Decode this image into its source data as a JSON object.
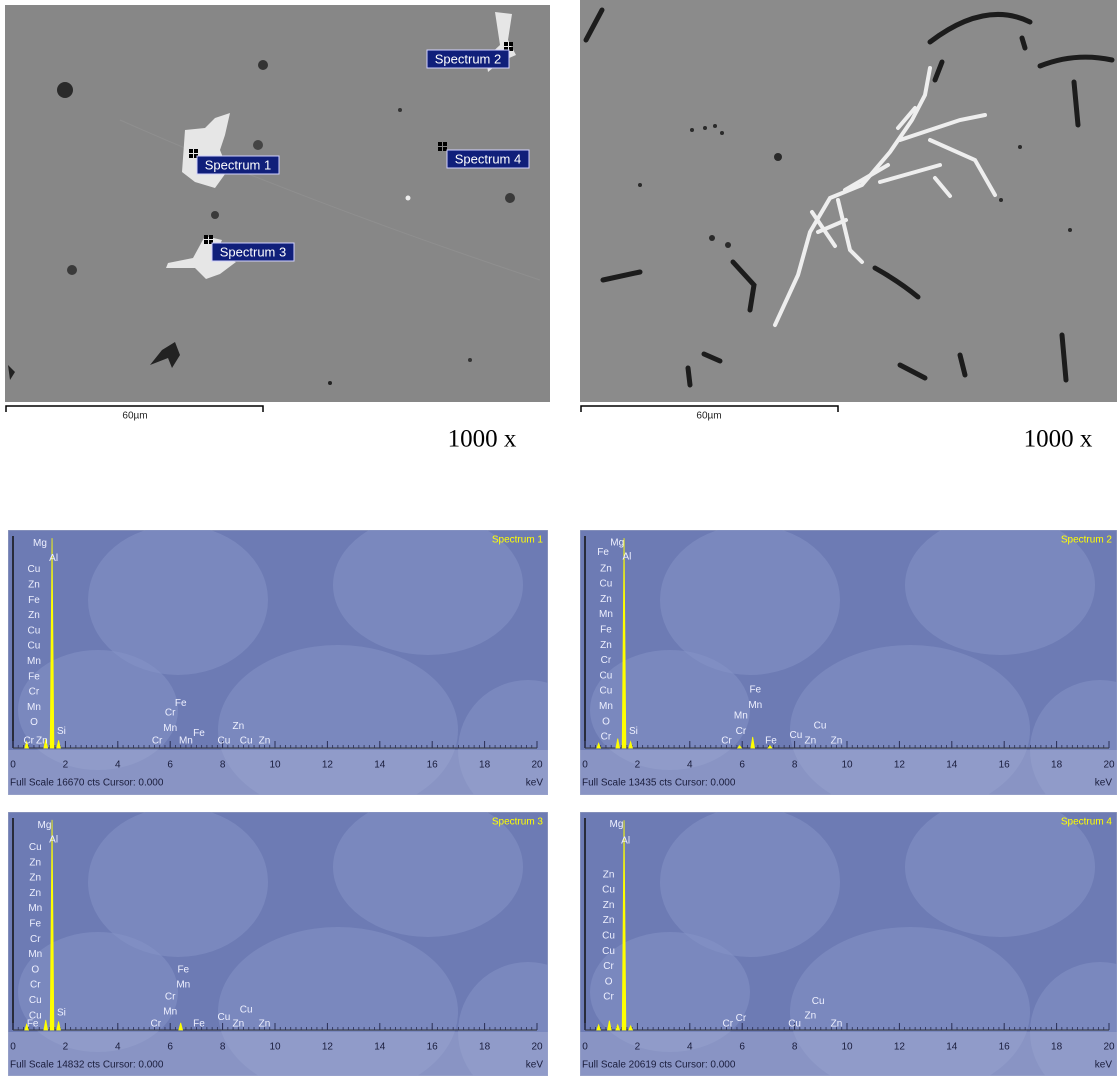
{
  "micrographs": [
    {
      "spectrum_labels": [
        "Spectrum 1",
        "Spectrum 2",
        "Spectrum 3",
        "Spectrum 4"
      ],
      "scale_bar": "60µm",
      "magnification": "1000 x"
    },
    {
      "scale_bar": "60µm",
      "magnification": "1000 x"
    }
  ],
  "chart_data": [
    {
      "type": "spectrum",
      "title": "Spectrum 1",
      "footer": "Full Scale 16670 cts Cursor: 0.000",
      "x_label": "keV",
      "color": "#ffff00",
      "xlim": [
        0,
        20
      ],
      "xticks": [
        0,
        2,
        4,
        6,
        8,
        10,
        12,
        14,
        16,
        18,
        20
      ],
      "ylim": [
        0,
        16670
      ],
      "x": [
        0.52,
        1.25,
        1.49,
        1.74
      ],
      "values": [
        500,
        700,
        16500,
        600
      ],
      "element_labels": [
        {
          "x": 1.03,
          "y": 16100,
          "labels": [
            "Mg"
          ]
        },
        {
          "x": 1.55,
          "y": 14900,
          "labels": [
            "Al"
          ]
        },
        {
          "x": 0.8,
          "y": 2000,
          "labels": [
            "Cu",
            "Zn",
            "Fe",
            "Zn",
            "Cu",
            "Cu",
            "Mn",
            "Fe",
            "Cr",
            "Mn",
            "O"
          ]
        },
        {
          "x": 0.6,
          "y": 550,
          "labels": [
            "Cr"
          ]
        },
        {
          "x": 1.1,
          "y": 550,
          "labels": [
            "Zn"
          ]
        },
        {
          "x": 1.85,
          "y": 1300,
          "labels": [
            "Si"
          ]
        },
        {
          "x": 6.4,
          "y": 3500,
          "labels": [
            "Fe"
          ]
        },
        {
          "x": 6.0,
          "y": 1560,
          "labels": [
            "Cr",
            "Mn"
          ]
        },
        {
          "x": 5.5,
          "y": 550,
          "labels": [
            "Cr"
          ]
        },
        {
          "x": 6.6,
          "y": 550,
          "labels": [
            "Mn"
          ]
        },
        {
          "x": 7.1,
          "y": 1170,
          "labels": [
            "Fe"
          ]
        },
        {
          "x": 8.6,
          "y": 1700,
          "labels": [
            "Zn"
          ]
        },
        {
          "x": 8.05,
          "y": 550,
          "labels": [
            "Cu"
          ]
        },
        {
          "x": 8.9,
          "y": 550,
          "labels": [
            "Cu"
          ]
        },
        {
          "x": 9.6,
          "y": 550,
          "labels": [
            "Zn"
          ]
        }
      ]
    },
    {
      "type": "spectrum",
      "title": "Spectrum 2",
      "footer": "Full Scale 13435 cts Cursor: 0.000",
      "x_label": "keV",
      "color": "#ffff00",
      "xlim": [
        0,
        20
      ],
      "xticks": [
        0,
        2,
        4,
        6,
        8,
        10,
        12,
        14,
        16,
        18,
        20
      ],
      "ylim": [
        0,
        13435
      ],
      "x": [
        0.52,
        1.25,
        1.49,
        1.74,
        5.9,
        6.4,
        7.06
      ],
      "values": [
        300,
        600,
        13300,
        400,
        150,
        700,
        150
      ],
      "element_labels": [
        {
          "x": 0.69,
          "y": 12400,
          "labels": [
            "Fe"
          ]
        },
        {
          "x": 1.23,
          "y": 13000,
          "labels": [
            "Mg"
          ]
        },
        {
          "x": 1.6,
          "y": 12100,
          "labels": [
            "Al"
          ]
        },
        {
          "x": 0.8,
          "y": 700,
          "labels": [
            "Zn",
            "Cu",
            "Zn",
            "Mn",
            "Fe",
            "Zn",
            "Cr",
            "Cu",
            "Cu",
            "Mn",
            "O",
            "Cr"
          ]
        },
        {
          "x": 1.85,
          "y": 1070,
          "labels": [
            "Si"
          ]
        },
        {
          "x": 6.5,
          "y": 2700,
          "labels": [
            "Fe",
            "Mn"
          ]
        },
        {
          "x": 5.95,
          "y": 1070,
          "labels": [
            "Mn",
            "Cr"
          ]
        },
        {
          "x": 5.4,
          "y": 450,
          "labels": [
            "Cr"
          ]
        },
        {
          "x": 7.1,
          "y": 450,
          "labels": [
            "Fe"
          ]
        },
        {
          "x": 8.97,
          "y": 1400,
          "labels": [
            "Cu"
          ]
        },
        {
          "x": 8.05,
          "y": 800,
          "labels": [
            "Cu"
          ]
        },
        {
          "x": 8.6,
          "y": 450,
          "labels": [
            "Zn"
          ]
        },
        {
          "x": 9.6,
          "y": 450,
          "labels": [
            "Zn"
          ]
        }
      ]
    },
    {
      "type": "spectrum",
      "title": "Spectrum 3",
      "footer": "Full Scale 14832 cts Cursor: 0.000",
      "x_label": "keV",
      "color": "#ffff00",
      "xlim": [
        0,
        20
      ],
      "xticks": [
        0,
        2,
        4,
        6,
        8,
        10,
        12,
        14,
        16,
        18,
        20
      ],
      "ylim": [
        0,
        14832
      ],
      "x": [
        0.52,
        1.25,
        1.49,
        1.74,
        6.4
      ],
      "values": [
        400,
        700,
        14700,
        600,
        500
      ],
      "element_labels": [
        {
          "x": 1.2,
          "y": 14300,
          "labels": [
            "Mg"
          ]
        },
        {
          "x": 1.55,
          "y": 13300,
          "labels": [
            "Al"
          ]
        },
        {
          "x": 0.85,
          "y": 1000,
          "labels": [
            "Cu",
            "Zn",
            "Zn",
            "Zn",
            "Mn",
            "Fe",
            "Cr",
            "Mn",
            "O",
            "Cr",
            "Cu",
            "Cu"
          ]
        },
        {
          "x": 0.75,
          "y": 420,
          "labels": [
            "Fe"
          ]
        },
        {
          "x": 1.85,
          "y": 1200,
          "labels": [
            "Si"
          ]
        },
        {
          "x": 6.5,
          "y": 3150,
          "labels": [
            "Fe",
            "Mn"
          ]
        },
        {
          "x": 6.0,
          "y": 1260,
          "labels": [
            "Cr",
            "Mn"
          ]
        },
        {
          "x": 5.45,
          "y": 420,
          "labels": [
            "Cr"
          ]
        },
        {
          "x": 7.1,
          "y": 420,
          "labels": [
            "Fe"
          ]
        },
        {
          "x": 8.9,
          "y": 1400,
          "labels": [
            "Cu"
          ]
        },
        {
          "x": 8.05,
          "y": 900,
          "labels": [
            "Cu"
          ]
        },
        {
          "x": 8.6,
          "y": 420,
          "labels": [
            "Zn"
          ]
        },
        {
          "x": 9.6,
          "y": 420,
          "labels": [
            "Zn"
          ]
        }
      ]
    },
    {
      "type": "spectrum",
      "title": "Spectrum 4",
      "footer": "Full Scale 20619 cts Cursor: 0.000",
      "x_label": "keV",
      "color": "#ffff00",
      "xlim": [
        0,
        20
      ],
      "xticks": [
        0,
        2,
        4,
        6,
        8,
        10,
        12,
        14,
        16,
        18,
        20
      ],
      "ylim": [
        0,
        20619
      ],
      "x": [
        0.52,
        0.93,
        1.25,
        1.49,
        1.74
      ],
      "values": [
        500,
        900,
        500,
        20400,
        400
      ],
      "element_labels": [
        {
          "x": 1.2,
          "y": 20000,
          "labels": [
            "Mg"
          ]
        },
        {
          "x": 1.55,
          "y": 18400,
          "labels": [
            "Al"
          ]
        },
        {
          "x": 0.9,
          "y": 3200,
          "labels": [
            "Zn",
            "Cu",
            "Zn",
            "Zn",
            "Cu",
            "Cu",
            "Cr",
            "O",
            "Cr"
          ]
        },
        {
          "x": 5.45,
          "y": 600,
          "labels": [
            "Cr"
          ]
        },
        {
          "x": 5.95,
          "y": 1150,
          "labels": [
            "Cr"
          ]
        },
        {
          "x": 8.9,
          "y": 2800,
          "labels": [
            "Cu"
          ]
        },
        {
          "x": 8.6,
          "y": 1360,
          "labels": [
            "Zn"
          ]
        },
        {
          "x": 8.0,
          "y": 600,
          "labels": [
            "Cu"
          ]
        },
        {
          "x": 9.6,
          "y": 600,
          "labels": [
            "Zn"
          ]
        }
      ]
    }
  ]
}
